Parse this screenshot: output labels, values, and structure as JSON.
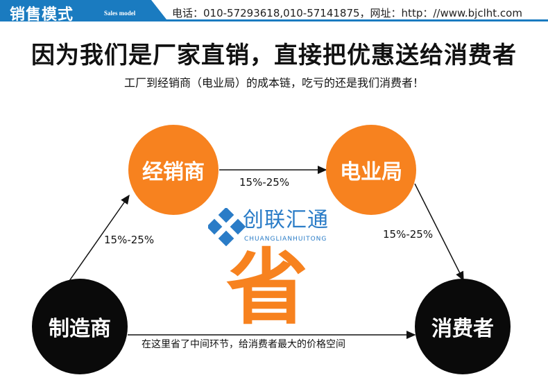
{
  "header": {
    "title": "销售模式",
    "subtitle": "Sales model",
    "contact": "电话：010-57293618,010-57141875，网址：http：//www.bjclht.com"
  },
  "headline": "因为我们是厂家直销，直接把优惠送给消费者",
  "subline": "工厂到经销商（电业局）的成本链，吃亏的还是我们消费者！",
  "nodes": {
    "distributor": "经销商",
    "power_bureau": "电业局",
    "manufacturer": "制造商",
    "consumer": "消费者"
  },
  "edges": {
    "manufacturer_to_distributor": "15%-25%",
    "distributor_to_bureau": "15%-25%",
    "bureau_to_consumer": "15%-25%",
    "direct": "在这里省了中间环节，给消费者最大的价格空间"
  },
  "center_char": "省",
  "watermark": {
    "cn": "创联汇通",
    "en": "CHUANGLIANHUITONG"
  },
  "colors": {
    "orange": "#f7821f",
    "blue": "#1a7bc0",
    "black": "#0a0a0a"
  }
}
